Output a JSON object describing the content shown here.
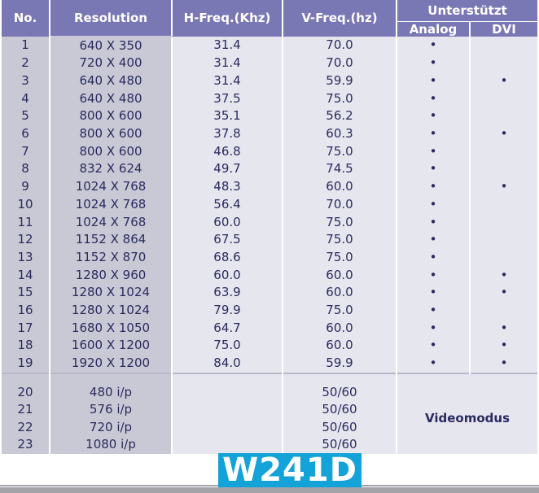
{
  "headers": {
    "no": "No.",
    "resolution": "Resolution",
    "hfreq": "H-Freq.(Khz)",
    "vfreq": "V-Freq.(hz)",
    "supported": "Unterstützt",
    "analog": "Analog",
    "dvi": "DVI"
  },
  "rows": [
    {
      "no": "1",
      "res": "640 X 350",
      "hf": "31.4",
      "vf": "70.0",
      "analog": "•",
      "dvi": ""
    },
    {
      "no": "2",
      "res": "720 X 400",
      "hf": "31.4",
      "vf": "70.0",
      "analog": "•",
      "dvi": ""
    },
    {
      "no": "3",
      "res": "640 X 480",
      "hf": "31.4",
      "vf": "59.9",
      "analog": "•",
      "dvi": "•"
    },
    {
      "no": "4",
      "res": "640 X 480",
      "hf": "37.5",
      "vf": "75.0",
      "analog": "•",
      "dvi": ""
    },
    {
      "no": "5",
      "res": "800 X 600",
      "hf": "35.1",
      "vf": "56.2",
      "analog": "•",
      "dvi": ""
    },
    {
      "no": "6",
      "res": "800 X 600",
      "hf": "37.8",
      "vf": "60.3",
      "analog": "•",
      "dvi": "•"
    },
    {
      "no": "7",
      "res": "800 X 600",
      "hf": "46.8",
      "vf": "75.0",
      "analog": "•",
      "dvi": ""
    },
    {
      "no": "8",
      "res": "832 X 624",
      "hf": "49.7",
      "vf": "74.5",
      "analog": "•",
      "dvi": ""
    },
    {
      "no": "9",
      "res": "1024 X 768",
      "hf": "48.3",
      "vf": "60.0",
      "analog": "•",
      "dvi": "•"
    },
    {
      "no": "10",
      "res": "1024 X 768",
      "hf": "56.4",
      "vf": "70.0",
      "analog": "•",
      "dvi": ""
    },
    {
      "no": "11",
      "res": "1024 X 768",
      "hf": "60.0",
      "vf": "75.0",
      "analog": "•",
      "dvi": ""
    },
    {
      "no": "12",
      "res": "1152 X 864",
      "hf": "67.5",
      "vf": "75.0",
      "analog": "•",
      "dvi": ""
    },
    {
      "no": "13",
      "res": "1152 X 870",
      "hf": "68.6",
      "vf": "75.0",
      "analog": "•",
      "dvi": ""
    },
    {
      "no": "14",
      "res": "1280 X 960",
      "hf": "60.0",
      "vf": "60.0",
      "analog": "•",
      "dvi": "•"
    },
    {
      "no": "15",
      "res": "1280 X 1024",
      "hf": "63.9",
      "vf": "60.0",
      "analog": "•",
      "dvi": "•"
    },
    {
      "no": "16",
      "res": "1280 X 1024",
      "hf": "79.9",
      "vf": "75.0",
      "analog": "•",
      "dvi": ""
    },
    {
      "no": "17",
      "res": "1680 X 1050",
      "hf": "64.7",
      "vf": "60.0",
      "analog": "•",
      "dvi": "•"
    },
    {
      "no": "18",
      "res": "1600 X 1200",
      "hf": "75.0",
      "vf": "60.0",
      "analog": "•",
      "dvi": "•"
    },
    {
      "no": "19",
      "res": "1920 X 1200",
      "hf": "84.0",
      "vf": "59.9",
      "analog": "•",
      "dvi": "•"
    }
  ],
  "video_rows": [
    {
      "no": "20",
      "res": "480 i/p",
      "vf": "50/60"
    },
    {
      "no": "21",
      "res": "576 i/p",
      "vf": "50/60"
    },
    {
      "no": "22",
      "res": "720 i/p",
      "vf": "50/60"
    },
    {
      "no": "23",
      "res": "1080 i/p",
      "vf": "50/60"
    }
  ],
  "video_mode_label": "Videomodus",
  "model": "W241D",
  "colors": {
    "header_bg": "#7a78b4",
    "dark_cell_bg": "#c9c9d6",
    "light_cell_bg": "#e6e6ef",
    "text": "#2a2a5e",
    "logo_bg": "#14a3d8"
  }
}
